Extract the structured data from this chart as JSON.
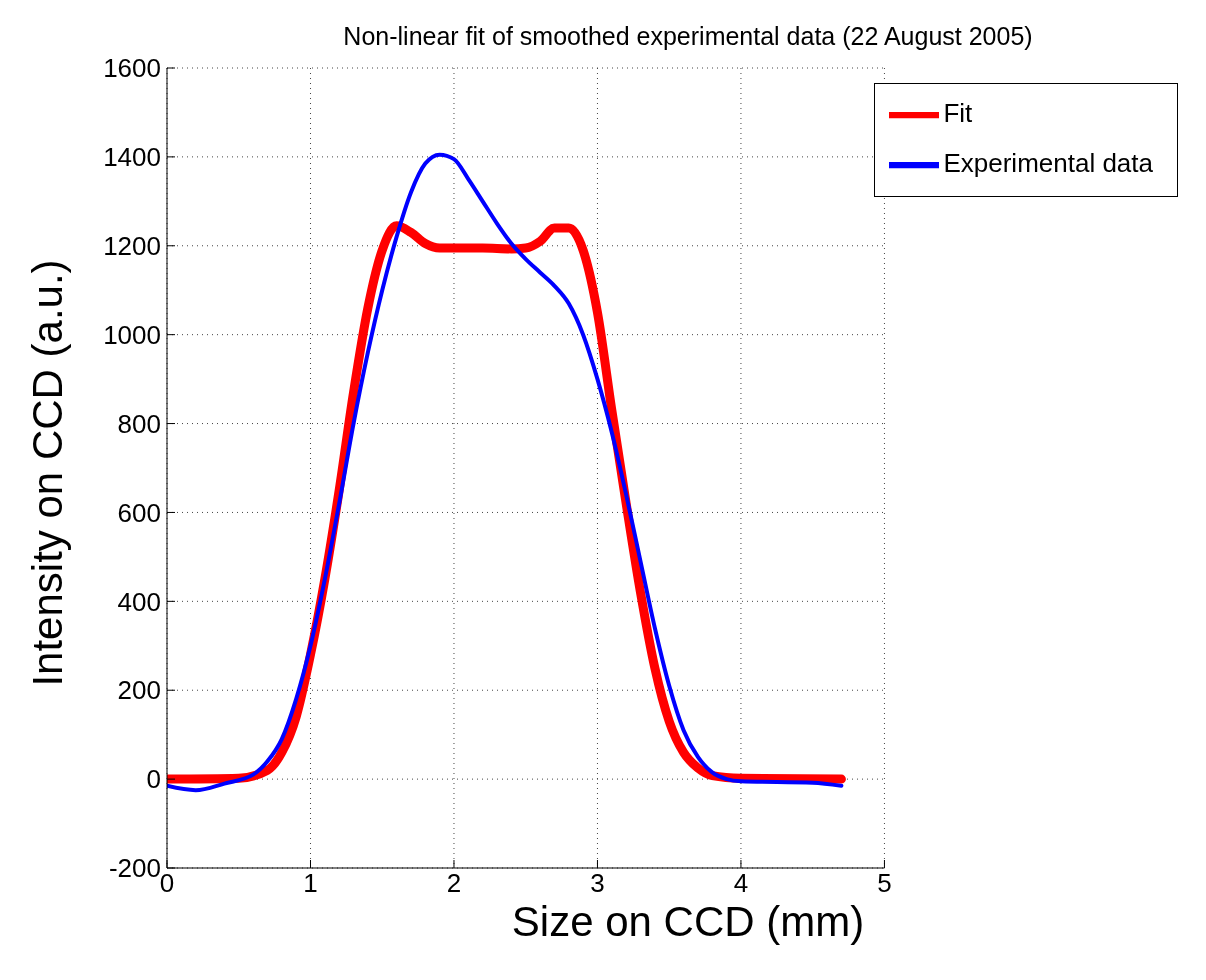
{
  "chart_data": {
    "type": "line",
    "title": "Non-linear fit of smoothed experimental data (22 August 2005)",
    "xlabel": "Size on CCD (mm)",
    "ylabel": "Intensity on CCD (a.u.)",
    "xlim": [
      0,
      5
    ],
    "xticks": [
      0,
      1,
      2,
      3,
      4,
      5
    ],
    "ylim": [
      -200,
      1600
    ],
    "yticks": [
      -200,
      0,
      200,
      400,
      600,
      800,
      1000,
      1200,
      1400,
      1600
    ],
    "grid": true,
    "legend": "top right",
    "line_style": "solid",
    "marker": "none",
    "series": [
      {
        "name": "Fit",
        "color": "#ff0000",
        "x": [
          0,
          0.5,
          0.7,
          0.8,
          0.9,
          1.0,
          1.1,
          1.2,
          1.3,
          1.4,
          1.5,
          1.6,
          1.7,
          1.8,
          1.9,
          2.0,
          2.2,
          2.4,
          2.5,
          2.6,
          2.7,
          2.8,
          2.9,
          3.0,
          3.1,
          3.2,
          3.3,
          3.4,
          3.5,
          3.6,
          3.7,
          3.8,
          4.0,
          4.7
        ],
        "values": [
          0,
          2,
          20,
          60,
          140,
          280,
          450,
          650,
          870,
          1060,
          1190,
          1245,
          1230,
          1205,
          1195,
          1195,
          1195,
          1193,
          1195,
          1210,
          1240,
          1240,
          1190,
          1050,
          830,
          620,
          420,
          250,
          130,
          60,
          25,
          8,
          2,
          0
        ]
      },
      {
        "name": "Experimental data",
        "color": "#0000ff",
        "x": [
          0,
          0.2,
          0.4,
          0.6,
          0.7,
          0.8,
          0.9,
          1.0,
          1.1,
          1.2,
          1.3,
          1.4,
          1.5,
          1.6,
          1.7,
          1.8,
          1.9,
          2.0,
          2.1,
          2.2,
          2.3,
          2.4,
          2.5,
          2.6,
          2.7,
          2.8,
          2.9,
          3.0,
          3.1,
          3.2,
          3.3,
          3.4,
          3.5,
          3.6,
          3.7,
          3.8,
          3.9,
          4.0,
          4.5,
          4.7
        ],
        "values": [
          -15,
          -25,
          -10,
          10,
          40,
          90,
          180,
          300,
          450,
          620,
          800,
          960,
          1100,
          1220,
          1320,
          1385,
          1405,
          1395,
          1350,
          1300,
          1250,
          1205,
          1170,
          1140,
          1110,
          1070,
          1000,
          900,
          780,
          640,
          490,
          340,
          210,
          110,
          50,
          15,
          0,
          -5,
          -8,
          -15
        ]
      }
    ]
  }
}
